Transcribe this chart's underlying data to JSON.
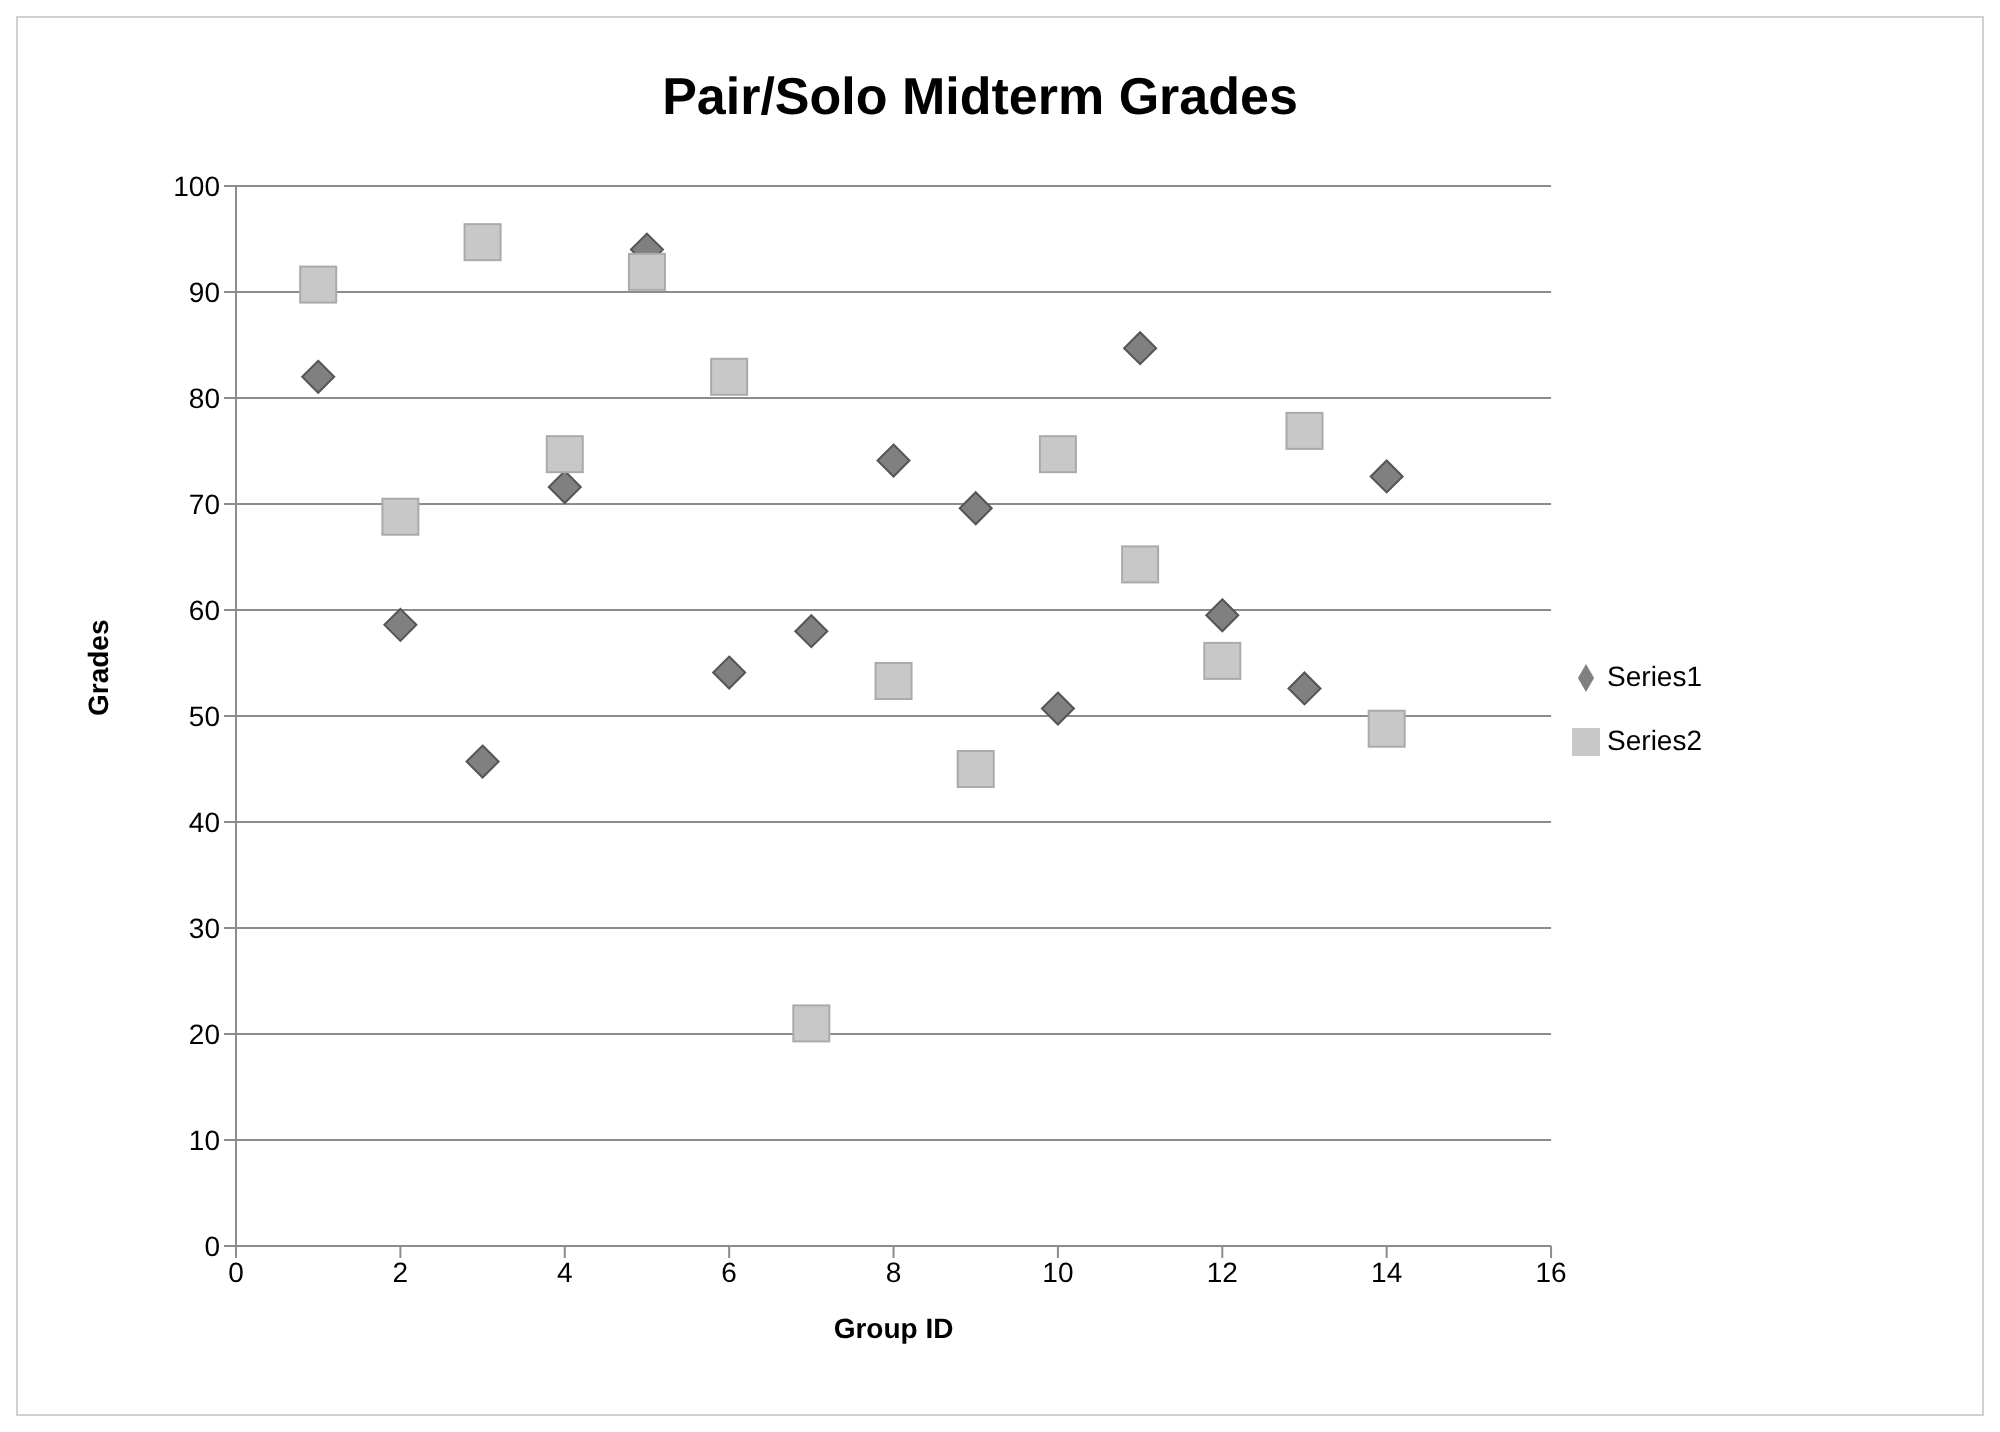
{
  "chart_data": {
    "type": "scatter",
    "title": "Pair/Solo Midterm Grades",
    "xlabel": "Group ID",
    "ylabel": "Grades",
    "xlim": [
      0,
      16
    ],
    "xticks": [
      0,
      2,
      4,
      6,
      8,
      10,
      12,
      14,
      16
    ],
    "ylim": [
      0,
      100
    ],
    "yticks": [
      0,
      10,
      20,
      30,
      40,
      50,
      60,
      70,
      80,
      90,
      100
    ],
    "grid": "y",
    "legend": "right",
    "x": [
      1,
      2,
      3,
      4,
      5,
      6,
      7,
      8,
      9,
      10,
      11,
      12,
      13,
      14
    ],
    "series": [
      {
        "name": "Series1",
        "color": "#808080",
        "marker": "diamond",
        "values": [
          82,
          58.6,
          45.7,
          71.6,
          94,
          54.1,
          58,
          74.1,
          69.6,
          50.7,
          84.7,
          59.5,
          52.6,
          72.6
        ]
      },
      {
        "name": "Series2",
        "color": "#c8c8c8",
        "marker": "square",
        "values": [
          90.7,
          68.8,
          94.7,
          74.7,
          91.9,
          82,
          21,
          53.3,
          45,
          74.7,
          64.3,
          55.2,
          76.9,
          48.8
        ]
      }
    ]
  }
}
